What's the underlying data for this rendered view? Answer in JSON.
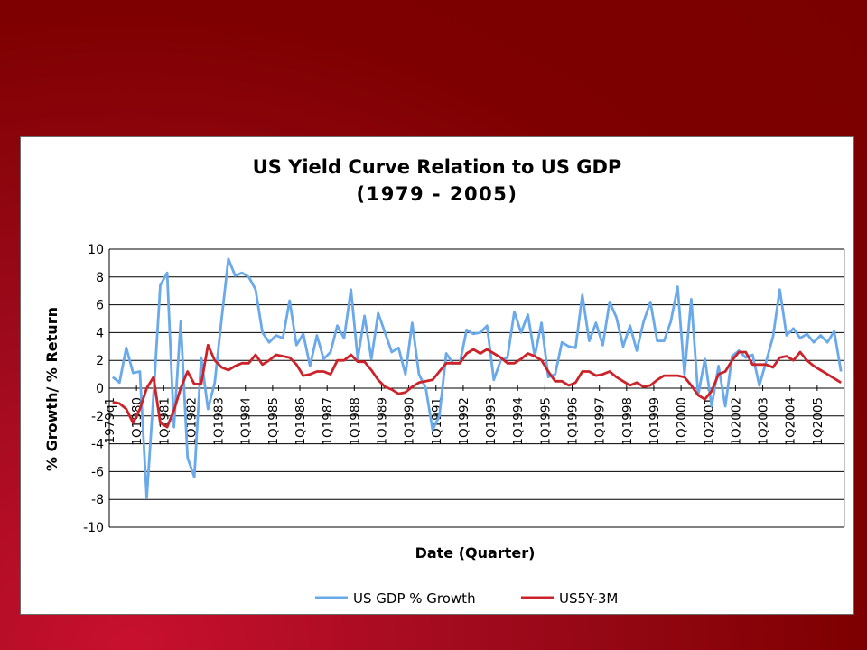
{
  "chart_data": {
    "type": "line",
    "title_lines": [
      "US Yield Curve Relation to US GDP",
      "(1979 - 2005)"
    ],
    "xlabel": "Date (Quarter)",
    "ylabel": "% Growth/ % Return",
    "ylim": [
      -10,
      10
    ],
    "y_ticks": [
      10,
      8,
      6,
      4,
      2,
      0,
      -2,
      -4,
      -6,
      -8,
      -10
    ],
    "grid": true,
    "legend_position": "bottom",
    "x_ticks": [
      {
        "label": "1979q1",
        "index": 0
      },
      {
        "label": "1Q1980",
        "index": 4
      },
      {
        "label": "1Q1981",
        "index": 8
      },
      {
        "label": "1Q1982",
        "index": 12
      },
      {
        "label": "1Q1983",
        "index": 16
      },
      {
        "label": "1Q1984",
        "index": 20
      },
      {
        "label": "1Q1985",
        "index": 24
      },
      {
        "label": "1Q1986",
        "index": 28
      },
      {
        "label": "1Q1987",
        "index": 32
      },
      {
        "label": "1Q1988",
        "index": 36
      },
      {
        "label": "1Q1989",
        "index": 40
      },
      {
        "label": "1Q1990",
        "index": 44
      },
      {
        "label": "1Q1991",
        "index": 48
      },
      {
        "label": "1Q1992",
        "index": 52
      },
      {
        "label": "1Q1993",
        "index": 56
      },
      {
        "label": "1Q1994",
        "index": 60
      },
      {
        "label": "1Q1995",
        "index": 64
      },
      {
        "label": "1Q1996",
        "index": 68
      },
      {
        "label": "1Q1997",
        "index": 72
      },
      {
        "label": "1Q1998",
        "index": 76
      },
      {
        "label": "1Q1999",
        "index": 80
      },
      {
        "label": "1Q2000",
        "index": 84
      },
      {
        "label": "1Q2001",
        "index": 88
      },
      {
        "label": "1Q2002",
        "index": 92
      },
      {
        "label": "1Q2003",
        "index": 96
      },
      {
        "label": "1Q2004",
        "index": 100
      },
      {
        "label": "1Q2005",
        "index": 104
      }
    ],
    "series": [
      {
        "name": "US GDP % Growth",
        "color": "#6aa9ea",
        "values": [
          0.8,
          0.4,
          2.9,
          1.1,
          1.2,
          -7.9,
          -0.5,
          7.4,
          8.3,
          -2.8,
          4.8,
          -5.0,
          -6.4,
          2.2,
          -1.5,
          0.4,
          5.0,
          9.3,
          8.1,
          8.3,
          8.0,
          7.1,
          4.0,
          3.3,
          3.8,
          3.6,
          6.3,
          3.1,
          3.9,
          1.6,
          3.8,
          2.1,
          2.6,
          4.5,
          3.6,
          7.1,
          2.1,
          5.2,
          2.1,
          5.4,
          4.0,
          2.6,
          2.9,
          1.0,
          4.7,
          1.0,
          0.0,
          -3.0,
          -2.0,
          2.5,
          1.8,
          1.8,
          4.2,
          3.9,
          4.0,
          4.5,
          0.6,
          2.0,
          2.2,
          5.5,
          4.0,
          5.3,
          2.3,
          4.7,
          0.8,
          1.0,
          3.3,
          3.0,
          2.9,
          6.7,
          3.4,
          4.7,
          3.1,
          6.2,
          5.1,
          3.0,
          4.5,
          2.7,
          4.8,
          6.2,
          3.4,
          3.4,
          4.8,
          7.3,
          1.0,
          6.4,
          -0.5,
          2.1,
          -1.3,
          1.6,
          -1.3,
          2.3,
          2.7,
          2.2,
          2.4,
          0.2,
          1.9,
          3.7,
          7.1,
          3.8,
          4.3,
          3.6,
          3.9,
          3.3,
          3.8,
          3.3,
          4.1,
          1.2
        ]
      },
      {
        "name": "US5Y-3M",
        "color": "#cc2229",
        "values": [
          -1.0,
          -1.1,
          -1.5,
          -2.5,
          -1.5,
          0.0,
          0.8,
          -2.5,
          -2.8,
          -1.6,
          0.0,
          1.2,
          0.3,
          0.3,
          3.1,
          2.0,
          1.5,
          1.3,
          1.6,
          1.8,
          1.8,
          2.4,
          1.7,
          2.0,
          2.4,
          2.3,
          2.2,
          1.7,
          0.9,
          1.0,
          1.2,
          1.2,
          1.0,
          2.0,
          2.0,
          2.4,
          1.9,
          1.9,
          1.3,
          0.6,
          0.1,
          -0.1,
          -0.4,
          -0.3,
          0.1,
          0.4,
          0.5,
          0.6,
          1.2,
          1.8,
          1.8,
          1.8,
          2.5,
          2.8,
          2.5,
          2.8,
          2.5,
          2.2,
          1.8,
          1.8,
          2.1,
          2.5,
          2.3,
          2.0,
          1.2,
          0.5,
          0.5,
          0.2,
          0.4,
          1.2,
          1.2,
          0.9,
          1.0,
          1.2,
          0.8,
          0.5,
          0.2,
          0.4,
          0.1,
          0.2,
          0.6,
          0.9,
          0.9,
          0.9,
          0.8,
          0.2,
          -0.5,
          -0.8,
          -0.2,
          1.0,
          1.2,
          2.0,
          2.6,
          2.6,
          1.7,
          1.7,
          1.7,
          1.5,
          2.2,
          2.3,
          2.0,
          2.6,
          2.0,
          1.6,
          1.3,
          1.0,
          0.7,
          0.4
        ]
      }
    ]
  }
}
